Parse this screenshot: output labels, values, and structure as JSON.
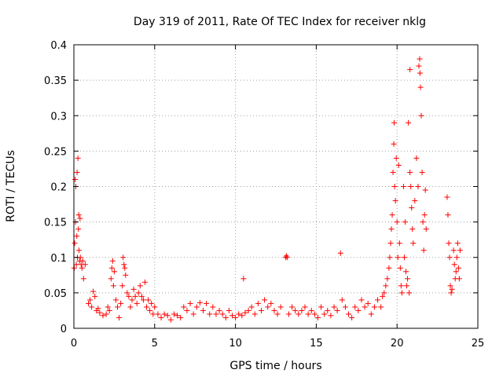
{
  "chart_data": {
    "type": "scatter",
    "title": "Day 319 of 2011, Rate Of TEC Index for receiver nklg",
    "xlabel": "GPS time / hours",
    "ylabel": "ROTI / TECUs",
    "xlim": [
      0,
      25
    ],
    "ylim": [
      0,
      0.4
    ],
    "xticks": [
      "0",
      "5",
      "10",
      "15",
      "20",
      "25"
    ],
    "yticks": [
      "0",
      "0.05",
      "0.1",
      "0.15",
      "0.2",
      "0.25",
      "0.3",
      "0.35",
      "0.4"
    ],
    "grid": true,
    "marker": "+",
    "color": "#ff0000",
    "series": [
      {
        "points": [
          [
            0.02,
            0.085
          ],
          [
            0.05,
            0.12
          ],
          [
            0.08,
            0.21
          ],
          [
            0.1,
            0.15
          ],
          [
            0.12,
            0.2
          ],
          [
            0.15,
            0.09
          ],
          [
            0.18,
            0.13
          ],
          [
            0.2,
            0.22
          ],
          [
            0.22,
            0.1
          ],
          [
            0.25,
            0.24
          ],
          [
            0.28,
            0.14
          ],
          [
            0.3,
            0.16
          ],
          [
            0.32,
            0.11
          ],
          [
            0.35,
            0.095
          ],
          [
            0.38,
            0.155
          ],
          [
            0.4,
            0.1
          ],
          [
            0.45,
            0.09
          ],
          [
            0.5,
            0.085
          ],
          [
            0.55,
            0.095
          ],
          [
            0.6,
            0.07
          ],
          [
            0.7,
            0.09
          ],
          [
            0.9,
            0.035
          ],
          [
            1.0,
            0.04
          ],
          [
            1.1,
            0.03
          ],
          [
            1.2,
            0.052
          ],
          [
            1.3,
            0.045
          ],
          [
            1.4,
            0.025
          ],
          [
            1.5,
            0.028
          ],
          [
            1.6,
            0.022
          ],
          [
            1.8,
            0.018
          ],
          [
            2.0,
            0.02
          ],
          [
            2.1,
            0.03
          ],
          [
            2.2,
            0.025
          ],
          [
            2.3,
            0.07
          ],
          [
            2.35,
            0.085
          ],
          [
            2.4,
            0.095
          ],
          [
            2.45,
            0.06
          ],
          [
            2.5,
            0.08
          ],
          [
            2.6,
            0.04
          ],
          [
            2.7,
            0.03
          ],
          [
            2.8,
            0.015
          ],
          [
            2.9,
            0.035
          ],
          [
            3.0,
            0.06
          ],
          [
            3.05,
            0.1
          ],
          [
            3.1,
            0.09
          ],
          [
            3.15,
            0.085
          ],
          [
            3.2,
            0.075
          ],
          [
            3.3,
            0.05
          ],
          [
            3.4,
            0.045
          ],
          [
            3.5,
            0.03
          ],
          [
            3.6,
            0.04
          ],
          [
            3.7,
            0.055
          ],
          [
            3.8,
            0.045
          ],
          [
            3.9,
            0.035
          ],
          [
            4.0,
            0.05
          ],
          [
            4.1,
            0.06
          ],
          [
            4.2,
            0.045
          ],
          [
            4.3,
            0.04
          ],
          [
            4.4,
            0.065
          ],
          [
            4.5,
            0.03
          ],
          [
            4.6,
            0.04
          ],
          [
            4.7,
            0.025
          ],
          [
            4.8,
            0.035
          ],
          [
            4.9,
            0.02
          ],
          [
            5.0,
            0.03
          ],
          [
            5.2,
            0.02
          ],
          [
            5.4,
            0.015
          ],
          [
            5.6,
            0.02
          ],
          [
            5.8,
            0.018
          ],
          [
            6.0,
            0.012
          ],
          [
            6.2,
            0.02
          ],
          [
            6.4,
            0.018
          ],
          [
            6.6,
            0.015
          ],
          [
            6.8,
            0.03
          ],
          [
            7.0,
            0.025
          ],
          [
            7.2,
            0.035
          ],
          [
            7.4,
            0.02
          ],
          [
            7.6,
            0.03
          ],
          [
            7.8,
            0.036
          ],
          [
            8.0,
            0.025
          ],
          [
            8.2,
            0.035
          ],
          [
            8.4,
            0.02
          ],
          [
            8.6,
            0.03
          ],
          [
            8.8,
            0.02
          ],
          [
            9.0,
            0.025
          ],
          [
            9.2,
            0.02
          ],
          [
            9.4,
            0.015
          ],
          [
            9.6,
            0.025
          ],
          [
            9.8,
            0.018
          ],
          [
            10.0,
            0.015
          ],
          [
            10.2,
            0.02
          ],
          [
            10.4,
            0.018
          ],
          [
            10.5,
            0.07
          ],
          [
            10.6,
            0.022
          ],
          [
            10.8,
            0.025
          ],
          [
            11.0,
            0.03
          ],
          [
            11.2,
            0.02
          ],
          [
            11.4,
            0.035
          ],
          [
            11.6,
            0.025
          ],
          [
            11.8,
            0.04
          ],
          [
            12.0,
            0.03
          ],
          [
            12.2,
            0.035
          ],
          [
            12.4,
            0.025
          ],
          [
            12.6,
            0.02
          ],
          [
            12.8,
            0.03
          ],
          [
            13.1,
            0.1
          ],
          [
            13.15,
            0.102
          ],
          [
            13.2,
            0.1
          ],
          [
            13.3,
            0.02
          ],
          [
            13.5,
            0.03
          ],
          [
            13.7,
            0.025
          ],
          [
            13.9,
            0.02
          ],
          [
            14.1,
            0.025
          ],
          [
            14.3,
            0.03
          ],
          [
            14.5,
            0.02
          ],
          [
            14.7,
            0.025
          ],
          [
            14.9,
            0.02
          ],
          [
            15.1,
            0.015
          ],
          [
            15.3,
            0.03
          ],
          [
            15.5,
            0.02
          ],
          [
            15.7,
            0.025
          ],
          [
            15.9,
            0.018
          ],
          [
            16.1,
            0.03
          ],
          [
            16.3,
            0.025
          ],
          [
            16.5,
            0.106
          ],
          [
            16.6,
            0.04
          ],
          [
            16.8,
            0.03
          ],
          [
            17.0,
            0.02
          ],
          [
            17.2,
            0.015
          ],
          [
            17.4,
            0.03
          ],
          [
            17.6,
            0.025
          ],
          [
            17.8,
            0.04
          ],
          [
            18.0,
            0.03
          ],
          [
            18.2,
            0.035
          ],
          [
            18.4,
            0.02
          ],
          [
            18.6,
            0.03
          ],
          [
            18.8,
            0.04
          ],
          [
            19.0,
            0.03
          ],
          [
            19.1,
            0.045
          ],
          [
            19.2,
            0.05
          ],
          [
            19.3,
            0.06
          ],
          [
            19.4,
            0.07
          ],
          [
            19.5,
            0.085
          ],
          [
            19.55,
            0.1
          ],
          [
            19.6,
            0.12
          ],
          [
            19.65,
            0.14
          ],
          [
            19.7,
            0.16
          ],
          [
            19.75,
            0.22
          ],
          [
            19.8,
            0.26
          ],
          [
            19.82,
            0.29
          ],
          [
            19.85,
            0.2
          ],
          [
            19.9,
            0.18
          ],
          [
            19.95,
            0.24
          ],
          [
            20.0,
            0.15
          ],
          [
            20.05,
            0.1
          ],
          [
            20.1,
            0.23
          ],
          [
            20.15,
            0.12
          ],
          [
            20.2,
            0.085
          ],
          [
            20.25,
            0.06
          ],
          [
            20.3,
            0.05
          ],
          [
            20.4,
            0.2
          ],
          [
            20.45,
            0.1
          ],
          [
            20.5,
            0.15
          ],
          [
            20.55,
            0.08
          ],
          [
            20.6,
            0.06
          ],
          [
            20.65,
            0.07
          ],
          [
            20.7,
            0.29
          ],
          [
            20.75,
            0.05
          ],
          [
            20.8,
            0.22
          ],
          [
            20.85,
            0.2
          ],
          [
            20.9,
            0.17
          ],
          [
            20.95,
            0.14
          ],
          [
            21.0,
            0.12
          ],
          [
            21.1,
            0.18
          ],
          [
            21.2,
            0.24
          ],
          [
            21.3,
            0.2
          ],
          [
            21.35,
            0.37
          ],
          [
            21.4,
            0.38
          ],
          [
            21.42,
            0.36
          ],
          [
            21.45,
            0.34
          ],
          [
            21.5,
            0.3
          ],
          [
            21.55,
            0.22
          ],
          [
            21.6,
            0.15
          ],
          [
            21.65,
            0.11
          ],
          [
            21.7,
            0.16
          ],
          [
            21.75,
            0.195
          ],
          [
            21.8,
            0.14
          ],
          [
            20.8,
            0.365
          ],
          [
            23.1,
            0.185
          ],
          [
            23.15,
            0.16
          ],
          [
            23.2,
            0.12
          ],
          [
            23.25,
            0.1
          ],
          [
            23.3,
            0.06
          ],
          [
            23.35,
            0.05
          ],
          [
            23.4,
            0.055
          ],
          [
            23.5,
            0.11
          ],
          [
            23.55,
            0.09
          ],
          [
            23.6,
            0.07
          ],
          [
            23.65,
            0.08
          ],
          [
            23.7,
            0.1
          ],
          [
            23.75,
            0.12
          ],
          [
            23.8,
            0.085
          ],
          [
            23.85,
            0.07
          ],
          [
            23.9,
            0.11
          ]
        ]
      }
    ]
  }
}
